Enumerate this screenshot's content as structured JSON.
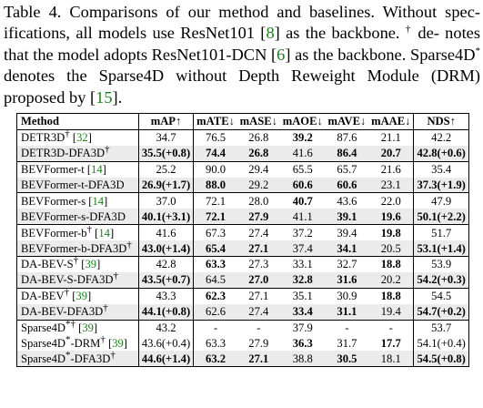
{
  "caption": {
    "l1": "Table 4. Comparisons of our method and baselines. Without spec-",
    "l2a": "ifications, all models use ResNet101 [",
    "l2_cite": "8",
    "l2b": "] as the backbone. ",
    "l2_dagger": "†",
    "l2c": " de-",
    "l3a": "notes that the model adopts ResNet101-DCN [",
    "l3_cite": "6",
    "l3b": "] as the backbone.",
    "l4a": "Sparse4D",
    "l4_star": "*",
    "l4b": " denotes the Sparse4D without Depth Reweight Module",
    "l5a": "(DRM) proposed by [",
    "l5_cite": "15",
    "l5b": "]."
  },
  "table": {
    "headers": [
      "Method",
      "mAP↑",
      "mATE↓",
      "mASE↓",
      "mAOE↓",
      "mAVE↓",
      "mAAE↓",
      "NDS↑"
    ],
    "groups": [
      [
        {
          "name": "DETR3D",
          "sup": "†",
          "cite": "32",
          "hl": false,
          "v": [
            "34.7",
            "76.5",
            "26.8",
            "39.2",
            "87.6",
            "21.1",
            "42.2"
          ],
          "b": [
            false,
            false,
            false,
            true,
            false,
            false,
            false
          ]
        },
        {
          "name": "DETR3D-DFA3D",
          "sup": "†",
          "cite": "",
          "hl": true,
          "v": [
            "35.5(+0.8)",
            "74.4",
            "26.8",
            "41.6",
            "86.4",
            "20.7",
            "42.8(+0.6)"
          ],
          "b": [
            true,
            true,
            true,
            false,
            true,
            true,
            true
          ]
        }
      ],
      [
        {
          "name": "BEVFormer-t",
          "sup": "",
          "cite": "14",
          "hl": false,
          "v": [
            "25.2",
            "90.0",
            "29.4",
            "65.5",
            "65.7",
            "21.6",
            "35.4"
          ],
          "b": [
            false,
            false,
            false,
            false,
            false,
            false,
            false
          ]
        },
        {
          "name": "BEVFormer-t-DFA3D",
          "sup": "",
          "cite": "",
          "hl": true,
          "v": [
            "26.9(+1.7)",
            "88.0",
            "29.2",
            "60.6",
            "60.6",
            "23.1",
            "37.3(+1.9)"
          ],
          "b": [
            true,
            true,
            false,
            true,
            true,
            false,
            true
          ]
        }
      ],
      [
        {
          "name": "BEVFormer-s",
          "sup": "",
          "cite": "14",
          "hl": false,
          "v": [
            "37.0",
            "72.1",
            "28.0",
            "40.7",
            "43.6",
            "22.0",
            "47.9"
          ],
          "b": [
            false,
            false,
            false,
            true,
            false,
            false,
            false
          ]
        },
        {
          "name": "BEVFormer-s-DFA3D",
          "sup": "",
          "cite": "",
          "hl": true,
          "v": [
            "40.1(+3.1)",
            "72.1",
            "27.9",
            "41.1",
            "39.1",
            "19.6",
            "50.1(+2.2)"
          ],
          "b": [
            true,
            true,
            true,
            false,
            true,
            true,
            true
          ]
        }
      ],
      [
        {
          "name": "BEVFormer-b",
          "sup": "†",
          "cite": "14",
          "hl": false,
          "v": [
            "41.6",
            "67.3",
            "27.4",
            "37.2",
            "39.4",
            "19.8",
            "51.7"
          ],
          "b": [
            false,
            false,
            false,
            false,
            false,
            true,
            false
          ]
        },
        {
          "name": "BEVFormer-b-DFA3D",
          "sup": "†",
          "cite": "",
          "hl": true,
          "v": [
            "43.0(+1.4)",
            "65.4",
            "27.1",
            "37.4",
            "34.1",
            "20.5",
            "53.1(+1.4)"
          ],
          "b": [
            true,
            true,
            true,
            false,
            true,
            false,
            true
          ]
        }
      ],
      [
        {
          "name": "DA-BEV-S",
          "sup": "†",
          "cite": "39",
          "hl": false,
          "v": [
            "42.8",
            "63.3",
            "27.3",
            "33.1",
            "32.7",
            "18.8",
            "53.9"
          ],
          "b": [
            false,
            true,
            false,
            false,
            false,
            true,
            false
          ]
        },
        {
          "name": "DA-BEV-S-DFA3D",
          "sup": "†",
          "cite": "",
          "hl": true,
          "v": [
            "43.5(+0.7)",
            "64.5",
            "27.0",
            "32.8",
            "31.6",
            "20.2",
            "54.2(+0.3)"
          ],
          "b": [
            true,
            false,
            true,
            true,
            true,
            false,
            true
          ]
        }
      ],
      [
        {
          "name": "DA-BEV",
          "sup": "†",
          "cite": "39",
          "hl": false,
          "v": [
            "43.3",
            "62.3",
            "27.1",
            "35.1",
            "30.9",
            "18.8",
            "54.5"
          ],
          "b": [
            false,
            true,
            false,
            false,
            false,
            true,
            false
          ]
        },
        {
          "name": "DA-BEV-DFA3D",
          "sup": "†",
          "cite": "",
          "hl": true,
          "v": [
            "44.1(+0.8)",
            "62.6",
            "27.4",
            "33.4",
            "31.1",
            "19.4",
            "54.7(+0.2)"
          ],
          "b": [
            true,
            false,
            false,
            true,
            true,
            false,
            true
          ]
        }
      ],
      [
        {
          "name": "Sparse4D",
          "sup": "*†",
          "cite": "39",
          "hl": false,
          "v": [
            "43.2",
            "-",
            "-",
            "37.9",
            "-",
            "-",
            "53.7"
          ],
          "b": [
            false,
            false,
            false,
            false,
            false,
            false,
            false
          ]
        },
        {
          "name": "Sparse4D*-DRM",
          "sup": "†",
          "cite": "39",
          "hl": false,
          "v": [
            "43.6(+0.4)",
            "63.3",
            "27.9",
            "36.3",
            "31.7",
            "17.7",
            "54.1(+0.4)"
          ],
          "b": [
            false,
            false,
            false,
            true,
            false,
            true,
            false
          ]
        },
        {
          "name": "Sparse4D*-DFA3D",
          "sup": "†",
          "cite": "",
          "hl": true,
          "v": [
            "44.6(+1.4)",
            "63.2",
            "27.1",
            "38.8",
            "30.5",
            "18.1",
            "54.5(+0.8)"
          ],
          "b": [
            true,
            true,
            true,
            false,
            true,
            false,
            true
          ]
        }
      ]
    ]
  }
}
